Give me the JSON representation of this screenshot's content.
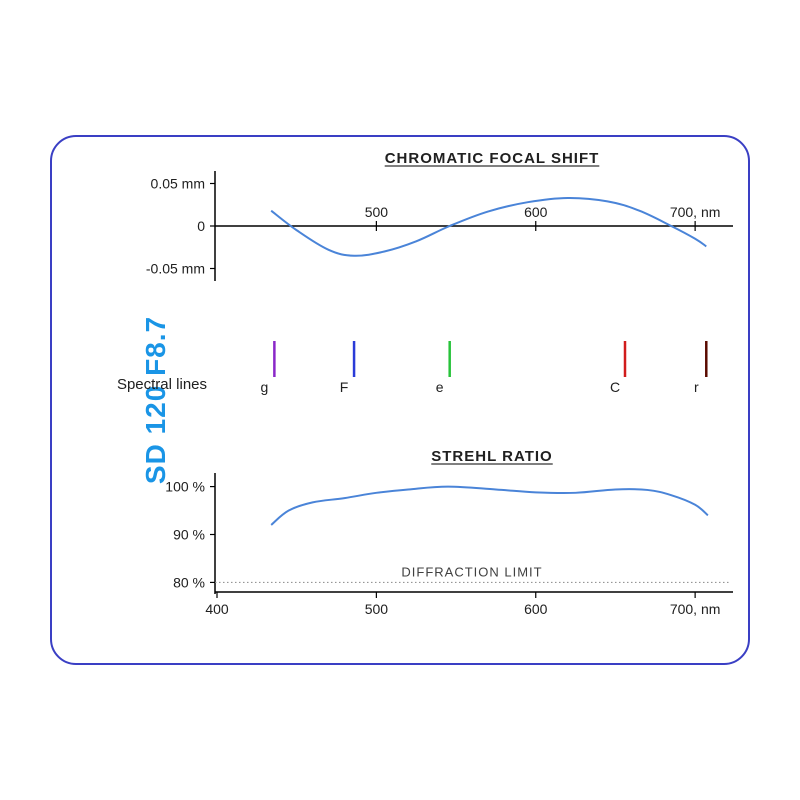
{
  "side_title": "SD 120 F8.7",
  "side_title_color": "#1a95e6",
  "card_border_color": "#3a3fc4",
  "curve_color": "#4a84d8",
  "chromatic": {
    "title": "CHROMATIC FOCAL SHIFT",
    "x_min": 400,
    "x_max": 720,
    "x_ticks": [
      500,
      600,
      700
    ],
    "x_unit": ", nm",
    "y_min": -0.06,
    "y_max": 0.06,
    "y_ticks": [
      {
        "v": 0.05,
        "label": "0.05 mm"
      },
      {
        "v": 0,
        "label": "0"
      },
      {
        "v": -0.05,
        "label": "-0.05 mm"
      }
    ],
    "curve": [
      {
        "x": 434,
        "y": 0.018
      },
      {
        "x": 450,
        "y": -0.005
      },
      {
        "x": 470,
        "y": -0.028
      },
      {
        "x": 486,
        "y": -0.035
      },
      {
        "x": 505,
        "y": -0.03
      },
      {
        "x": 525,
        "y": -0.018
      },
      {
        "x": 546,
        "y": 0.0
      },
      {
        "x": 570,
        "y": 0.017
      },
      {
        "x": 595,
        "y": 0.028
      },
      {
        "x": 620,
        "y": 0.033
      },
      {
        "x": 645,
        "y": 0.029
      },
      {
        "x": 665,
        "y": 0.018
      },
      {
        "x": 685,
        "y": 0.0
      },
      {
        "x": 700,
        "y": -0.015
      },
      {
        "x": 707,
        "y": -0.024
      }
    ]
  },
  "spectral": {
    "label": "Spectral lines",
    "tick_half_height": 18,
    "lines": [
      {
        "letter": "g",
        "wavelength": 436,
        "color": "#8a27c8"
      },
      {
        "letter": "F",
        "wavelength": 486,
        "color": "#2a3bd8"
      },
      {
        "letter": "e",
        "wavelength": 546,
        "color": "#27c33a"
      },
      {
        "letter": "C",
        "wavelength": 656,
        "color": "#d11c1c"
      },
      {
        "letter": "r",
        "wavelength": 707,
        "color": "#5a0b00"
      }
    ]
  },
  "strehl": {
    "title": "STREHL RATIO",
    "x_min": 400,
    "x_max": 720,
    "x_ticks": [
      400,
      500,
      600,
      700
    ],
    "x_unit": ", nm",
    "y_min": 78,
    "y_max": 102,
    "y_ticks": [
      {
        "v": 100,
        "label": "100 %"
      },
      {
        "v": 90,
        "label": "90 %"
      },
      {
        "v": 80,
        "label": "80 %"
      }
    ],
    "diffraction_limit": {
      "value": 80,
      "label": "DIFFRACTION LIMIT"
    },
    "curve": [
      {
        "x": 434,
        "y": 92.0
      },
      {
        "x": 445,
        "y": 95.0
      },
      {
        "x": 460,
        "y": 96.7
      },
      {
        "x": 480,
        "y": 97.6
      },
      {
        "x": 500,
        "y": 98.7
      },
      {
        "x": 520,
        "y": 99.4
      },
      {
        "x": 545,
        "y": 100.0
      },
      {
        "x": 575,
        "y": 99.4
      },
      {
        "x": 600,
        "y": 98.8
      },
      {
        "x": 625,
        "y": 98.7
      },
      {
        "x": 650,
        "y": 99.4
      },
      {
        "x": 670,
        "y": 99.3
      },
      {
        "x": 685,
        "y": 98.2
      },
      {
        "x": 700,
        "y": 96.2
      },
      {
        "x": 708,
        "y": 94.0
      }
    ]
  }
}
